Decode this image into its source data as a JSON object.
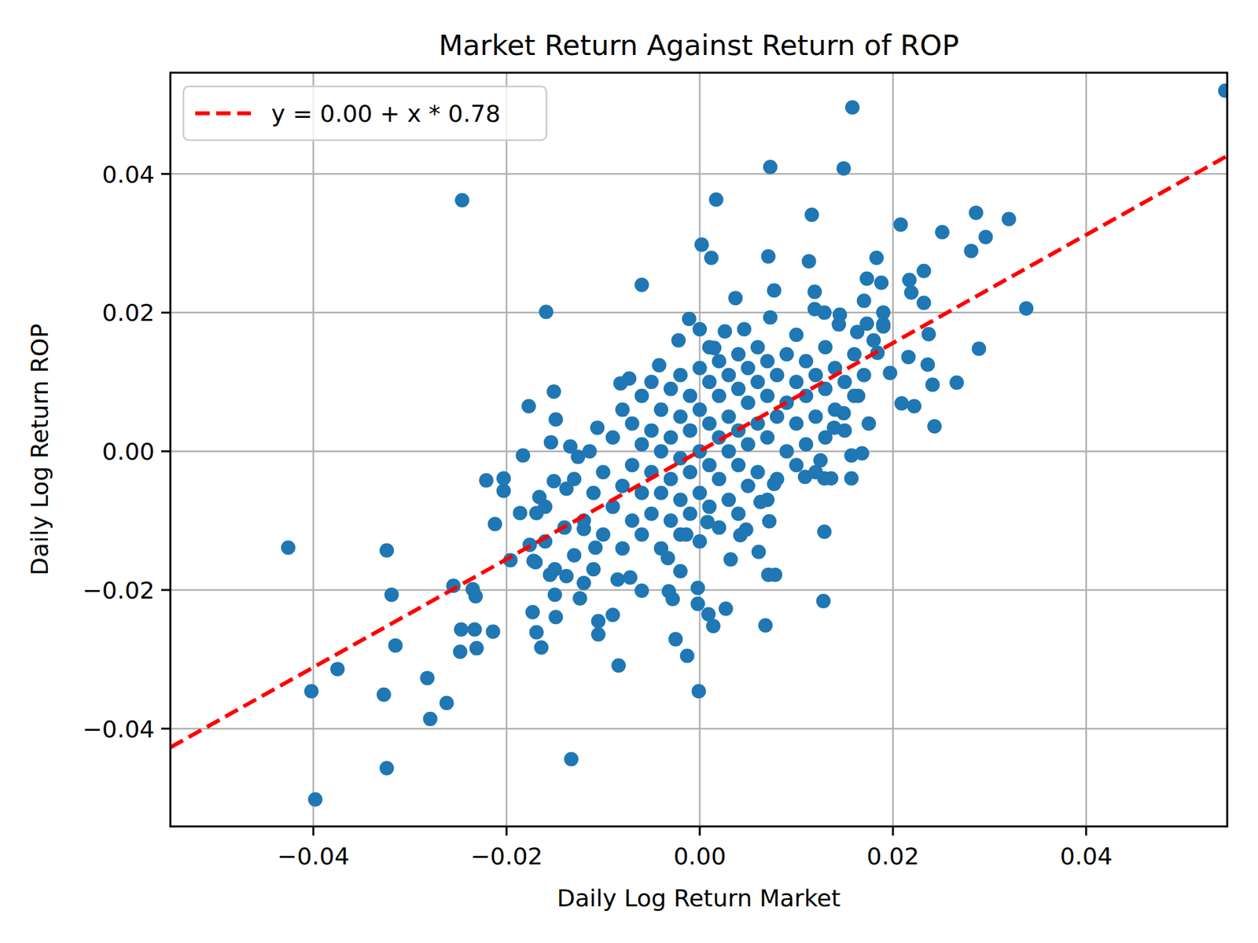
{
  "chart_data": {
    "type": "scatter",
    "title": "Market Return Against Return of ROP",
    "x_label": "Daily Log Return Market",
    "y_label": "Daily Log Return ROP",
    "xlim": [
      -0.0548,
      0.0546
    ],
    "ylim": [
      -0.0541,
      0.0546
    ],
    "xticks": [
      {
        "value": -0.04,
        "label": "−0.04"
      },
      {
        "value": -0.02,
        "label": "−0.02"
      },
      {
        "value": 0,
        "label": "0.00"
      },
      0.02,
      0.04
    ],
    "yticks": [
      {
        "value": -0.04,
        "label": "−0.04"
      },
      {
        "value": -0.02,
        "label": "−0.02"
      },
      {
        "value": 0,
        "label": "0.00"
      },
      0.02,
      0.04
    ],
    "grid": true,
    "legend": "upper left",
    "series": [
      {
        "type": "scatter",
        "color": "#1f77b4",
        "marker": "circle",
        "x": [
          0.0544,
          0.0158,
          0.0073,
          0.0149,
          -0.0246,
          0.0017,
          0.0116,
          0.0208,
          0.0286,
          0.032,
          0.0251,
          0.0296,
          0.0281,
          0.0002,
          0.0012,
          0.0071,
          0.0113,
          0.0183,
          0.0232,
          -0.006,
          0.0173,
          0.0188,
          0.0217,
          0.0119,
          0.0077,
          0.0037,
          -0.0159,
          0.0338,
          0.0232,
          0.0219,
          0.0237,
          0.0289,
          0.0266,
          0.0241,
          0.0209,
          0.0222,
          0.0243,
          0.0157,
          0.0168,
          0.0157,
          0.0129,
          0.0128,
          0.0068,
          0.0071,
          0.0078,
          0.0072,
          0.0027,
          0.0014,
          0.0009,
          -0.0001,
          -0.0013,
          -0.0025,
          -0.0002,
          -0.0002,
          -0.0133,
          -0.0084,
          -0.009,
          -0.0105,
          -0.0105,
          -0.0149,
          -0.0164,
          -0.0169,
          -0.0173,
          -0.015,
          -0.0124,
          -0.0214,
          -0.0233,
          -0.0247,
          -0.0248,
          -0.0231,
          -0.0232,
          -0.0235,
          -0.0255,
          -0.0262,
          -0.0279,
          -0.0282,
          -0.0327,
          -0.0324,
          -0.0315,
          -0.0319,
          -0.0324,
          -0.0375,
          -0.0402,
          -0.0398,
          -0.0426,
          -0.0196,
          -0.0212,
          -0.0221,
          -0.0203,
          -0.0203,
          -0.0183,
          -0.0177,
          -0.0151,
          -0.0149,
          -0.0154,
          -0.0134,
          -0.0106,
          -0.0082,
          -0.0073,
          -0.0042,
          -0.0011,
          -0.0022,
          0.0,
          0.0015,
          0.0026,
          0.0046,
          0.0073,
          0.01,
          0.0119,
          0.0129,
          0.0145,
          0.0144,
          0.0163,
          0.0173,
          0.017,
          0.019,
          0.019,
          0.0184,
          0.0197,
          0.0216,
          0.0236,
          0.0164,
          0.0175,
          0.0149,
          0.0139,
          0.0125,
          0.0129,
          0.0136,
          0.0109,
          0.0077,
          0.0063,
          0.0061,
          0.0048,
          0.0032,
          0.0042,
          0.0008,
          -0.0014,
          -0.002,
          -0.0033,
          -0.0032,
          -0.0028,
          -0.006,
          -0.0072,
          -0.0085,
          -0.0108,
          -0.012,
          -0.0138,
          -0.0155,
          -0.0172,
          -0.0176,
          -0.0186,
          -0.0169,
          -0.0166,
          -0.0151,
          -0.0138,
          -0.0126,
          -0.0114,
          -0.012,
          -0.011,
          -0.01,
          -0.01,
          -0.009,
          -0.009,
          -0.008,
          -0.008,
          -0.008,
          -0.007,
          -0.007,
          -0.007,
          -0.006,
          -0.006,
          -0.006,
          -0.006,
          -0.005,
          -0.005,
          -0.005,
          -0.005,
          -0.004,
          -0.004,
          -0.004,
          -0.004,
          -0.003,
          -0.003,
          -0.003,
          -0.003,
          -0.002,
          -0.002,
          -0.002,
          -0.002,
          -0.002,
          -0.001,
          -0.001,
          -0.001,
          -0.001,
          0.0,
          0.0,
          0.0,
          0.0,
          0.0,
          0.001,
          0.001,
          0.001,
          0.001,
          0.001,
          0.002,
          0.002,
          0.002,
          0.002,
          0.002,
          0.003,
          0.003,
          0.003,
          0.003,
          0.004,
          0.004,
          0.004,
          0.004,
          0.004,
          0.005,
          0.005,
          0.005,
          0.005,
          0.006,
          0.006,
          0.006,
          0.006,
          0.007,
          0.007,
          0.007,
          0.007,
          0.008,
          0.008,
          0.008,
          0.009,
          0.009,
          0.009,
          0.01,
          0.01,
          0.01,
          0.011,
          0.011,
          0.011,
          0.012,
          0.012,
          0.012,
          0.013,
          0.013,
          0.013,
          0.014,
          0.014,
          0.015,
          0.015,
          0.016,
          0.016,
          0.017,
          0.018,
          0.019,
          -0.013,
          -0.014,
          -0.015,
          -0.016,
          -0.017,
          -0.012,
          -0.011,
          -0.013,
          -0.016
        ],
        "values": [
          0.052,
          0.0496,
          0.041,
          0.0408,
          0.0362,
          0.0363,
          0.0341,
          0.0327,
          0.0344,
          0.0335,
          0.0316,
          0.0309,
          0.0289,
          0.0298,
          0.0279,
          0.0281,
          0.0274,
          0.0279,
          0.026,
          0.024,
          0.0249,
          0.0243,
          0.0247,
          0.023,
          0.0232,
          0.0221,
          0.0201,
          0.0206,
          0.0214,
          0.0229,
          0.0169,
          0.0148,
          0.0099,
          0.0096,
          0.0069,
          0.0065,
          0.0036,
          -0.0039,
          -0.0003,
          -0.0006,
          -0.0116,
          -0.0216,
          -0.0251,
          -0.0178,
          -0.0178,
          -0.0101,
          -0.0227,
          -0.0252,
          -0.0235,
          -0.0346,
          -0.0295,
          -0.0271,
          -0.022,
          -0.0197,
          -0.0444,
          -0.0309,
          -0.0236,
          -0.0245,
          -0.0264,
          -0.0239,
          -0.0283,
          -0.0261,
          -0.0232,
          -0.0207,
          -0.0212,
          -0.026,
          -0.0257,
          -0.0257,
          -0.0289,
          -0.0284,
          -0.0209,
          -0.0199,
          -0.0194,
          -0.0363,
          -0.0386,
          -0.0327,
          -0.0351,
          -0.0457,
          -0.028,
          -0.0207,
          -0.0143,
          -0.0314,
          -0.0346,
          -0.0502,
          -0.0139,
          -0.0157,
          -0.0105,
          -0.0042,
          -0.0039,
          -0.0057,
          -0.0006,
          0.0065,
          0.0086,
          0.0046,
          0.0013,
          0.0007,
          0.0034,
          0.0098,
          0.0105,
          0.0124,
          0.0191,
          0.016,
          0.0176,
          0.0149,
          0.0173,
          0.0176,
          0.0193,
          0.0168,
          0.0205,
          0.02,
          0.0197,
          0.0183,
          0.0172,
          0.0184,
          0.0217,
          0.02,
          0.0183,
          0.0142,
          0.0113,
          0.0136,
          0.0125,
          0.008,
          0.004,
          0.0055,
          0.0034,
          -0.0013,
          -0.0039,
          -0.0039,
          -0.0037,
          -0.0047,
          -0.0073,
          -0.0145,
          -0.0113,
          -0.0156,
          -0.0121,
          -0.0102,
          -0.012,
          -0.0173,
          -0.0154,
          -0.0202,
          -0.0213,
          -0.0201,
          -0.0182,
          -0.0185,
          -0.0139,
          -0.0112,
          -0.018,
          -0.0178,
          -0.0158,
          -0.0135,
          -0.0089,
          -0.0089,
          -0.0066,
          -0.0043,
          -0.0054,
          -0.0008,
          0.0,
          -0.01,
          -0.006,
          -0.012,
          -0.003,
          -0.008,
          0.002,
          -0.014,
          -0.005,
          0.006,
          -0.01,
          -0.002,
          0.004,
          -0.012,
          -0.006,
          0.001,
          0.008,
          -0.009,
          -0.003,
          0.003,
          0.01,
          -0.014,
          -0.006,
          0.0,
          0.006,
          -0.01,
          -0.004,
          0.002,
          0.009,
          -0.012,
          -0.007,
          -0.001,
          0.005,
          0.011,
          -0.009,
          -0.003,
          0.003,
          0.008,
          -0.013,
          -0.006,
          0.0,
          0.006,
          0.012,
          -0.008,
          -0.002,
          0.004,
          0.01,
          0.015,
          -0.011,
          -0.004,
          0.002,
          0.008,
          0.013,
          -0.007,
          0.0,
          0.005,
          0.011,
          -0.009,
          -0.002,
          0.003,
          0.009,
          0.014,
          -0.005,
          0.001,
          0.007,
          0.012,
          -0.003,
          0.004,
          0.01,
          0.015,
          -0.007,
          0.002,
          0.008,
          0.013,
          -0.004,
          0.005,
          0.011,
          0.0,
          0.007,
          0.014,
          -0.002,
          0.004,
          0.01,
          0.001,
          0.008,
          0.013,
          -0.003,
          0.005,
          0.011,
          0.002,
          0.009,
          0.015,
          0.006,
          0.012,
          0.003,
          0.01,
          0.014,
          0.008,
          0.011,
          0.016,
          0.018,
          -0.015,
          -0.011,
          -0.017,
          -0.013,
          -0.016,
          -0.019,
          -0.017,
          -0.004,
          -0.008
        ]
      },
      {
        "name": "y = 0.00 + x * 0.78",
        "type": "line",
        "color": "#ff0000",
        "line_style": "dashed",
        "x": [
          -0.0548,
          0.0546
        ],
        "values": [
          -0.0427,
          0.0426
        ]
      }
    ]
  }
}
